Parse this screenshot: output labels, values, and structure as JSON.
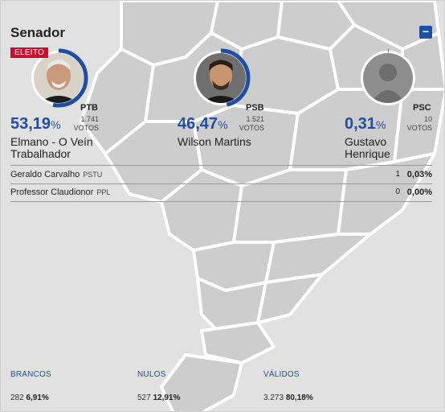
{
  "header": {
    "title": "Senador",
    "collapse_label": "−"
  },
  "colors": {
    "accent": "#1f4ea3",
    "elected_badge": "#c8102e"
  },
  "candidates": [
    {
      "name_line1": "Elmano - O Veín",
      "name_line2": "Trabalhador",
      "party": "PTB",
      "pct": "53,19",
      "pct_sign": "%",
      "votes": "1.741",
      "votes_label": "VOTOS",
      "badge": "ELEITO",
      "ring_fraction": 0.5319
    },
    {
      "name_line1": "Wilson Martins",
      "name_line2": "",
      "party": "PSB",
      "pct": "46,47",
      "pct_sign": "%",
      "votes": "1.521",
      "votes_label": "VOTOS",
      "ring_fraction": 0.4647
    },
    {
      "name_line1": "Gustavo",
      "name_line2": "Henrique",
      "party": "PSC",
      "pct": "0,31",
      "pct_sign": "%",
      "votes": "10",
      "votes_label": "VOTOS",
      "ring_fraction": 0.0031
    }
  ],
  "others": [
    {
      "name": "Geraldo Carvalho",
      "party": "PSTU",
      "votes": "1",
      "pct": "0,03%"
    },
    {
      "name": "Professor Claudionor",
      "party": "PPL",
      "votes": "0",
      "pct": "0,00%"
    }
  ],
  "summary": [
    {
      "label": "BRANCOS",
      "count": "282",
      "pct": "6,91%"
    },
    {
      "label": "NULOS",
      "count": "527",
      "pct": "12,91%"
    },
    {
      "label": "VÁLIDOS",
      "count": "3.273",
      "pct": "80,18%"
    }
  ]
}
